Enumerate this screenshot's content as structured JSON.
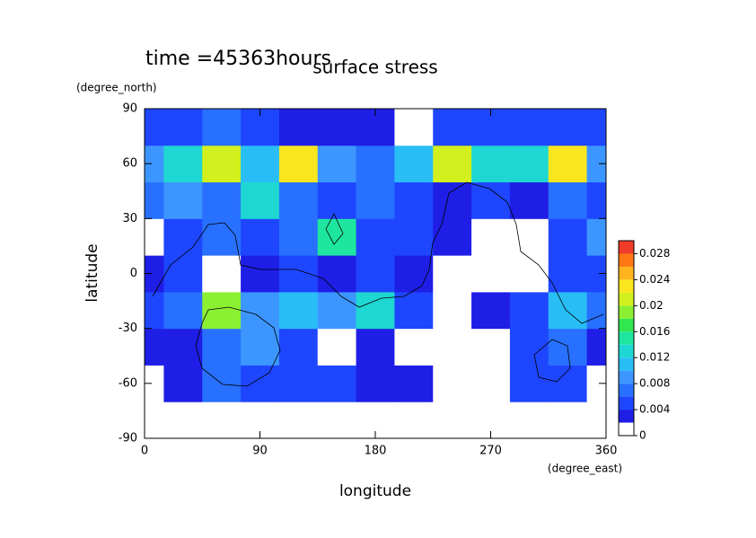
{
  "chart_data": {
    "type": "contour",
    "title": "surface stress",
    "subtitle": "time =45363hours",
    "x_label": "longitude",
    "x_unit": "(degree_east)",
    "y_label": "latitude",
    "y_unit": "(degree_north)",
    "x": [
      0,
      30,
      60,
      90,
      120,
      150,
      180,
      210,
      240,
      270,
      300,
      330,
      360
    ],
    "y": [
      -80,
      -60,
      -40,
      -20,
      0,
      20,
      40,
      60,
      80
    ],
    "z": [
      [
        0,
        0,
        0,
        0,
        0,
        0,
        0,
        0,
        0,
        0,
        0,
        0,
        0
      ],
      [
        0.001,
        0.002,
        0.006,
        0.005,
        0.004,
        0.004,
        0.003,
        0.002,
        0.001,
        0.001,
        0.004,
        0.004,
        0.001
      ],
      [
        0.003,
        0.003,
        0.006,
        0.008,
        0.004,
        0.001,
        0.002,
        0.001,
        0.001,
        0.001,
        0.004,
        0.006,
        0.002
      ],
      [
        0.004,
        0.006,
        0.018,
        0.008,
        0.01,
        0.008,
        0.012,
        0.004,
        0.001,
        0.002,
        0.004,
        0.01,
        0.006
      ],
      [
        0.003,
        0.004,
        0.001,
        0.003,
        0.004,
        0.003,
        0.004,
        0.003,
        0.001,
        0.001,
        0.001,
        0.004,
        0.004
      ],
      [
        0.001,
        0.004,
        0.006,
        0.004,
        0.006,
        0.014,
        0.004,
        0.005,
        0.003,
        0.001,
        0.001,
        0.004,
        0.008
      ],
      [
        0.006,
        0.008,
        0.006,
        0.012,
        0.006,
        0.004,
        0.006,
        0.004,
        0.002,
        0.004,
        0.003,
        0.006,
        0.005
      ],
      [
        0.008,
        0.012,
        0.02,
        0.01,
        0.022,
        0.008,
        0.006,
        0.01,
        0.02,
        0.012,
        0.012,
        0.022,
        0.008
      ],
      [
        0.004,
        0.005,
        0.006,
        0.004,
        0.003,
        0.002,
        0.003,
        0.001,
        0.004,
        0.004,
        0.005,
        0.005,
        0.004
      ]
    ],
    "xlim": [
      0,
      360
    ],
    "xticks": [
      0,
      90,
      180,
      270,
      360
    ],
    "ylim": [
      -90,
      90
    ],
    "yticks": [
      -90,
      -60,
      -30,
      0,
      30,
      60,
      90
    ],
    "clim": [
      0,
      0.03
    ],
    "cticks": [
      0,
      0.004,
      0.008,
      0.012,
      0.016,
      0.02,
      0.024,
      0.028
    ],
    "levels": [
      0,
      0.002,
      0.004,
      0.006,
      0.008,
      0.01,
      0.012,
      0.014,
      0.016,
      0.018,
      0.02,
      0.022,
      0.024,
      0.026,
      0.028,
      0.03
    ],
    "colors": [
      "#ffffff",
      "#1e1ee6",
      "#1e46ff",
      "#2870ff",
      "#3c96ff",
      "#28bef5",
      "#1ed7d2",
      "#1ee6a0",
      "#32e650",
      "#8cf032",
      "#d2f01e",
      "#fae61e",
      "#ffb41e",
      "#ff7814",
      "#f03c28"
    ]
  }
}
